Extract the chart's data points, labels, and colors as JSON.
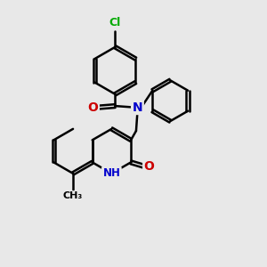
{
  "bg_color": "#e8e8e8",
  "bond_color": "#000000",
  "bond_width": 1.8,
  "dbo": 0.055,
  "atom_colors": {
    "Cl": "#00aa00",
    "N": "#0000cc",
    "O": "#cc0000",
    "C": "#000000",
    "H": "#000000"
  },
  "font_size": 9
}
